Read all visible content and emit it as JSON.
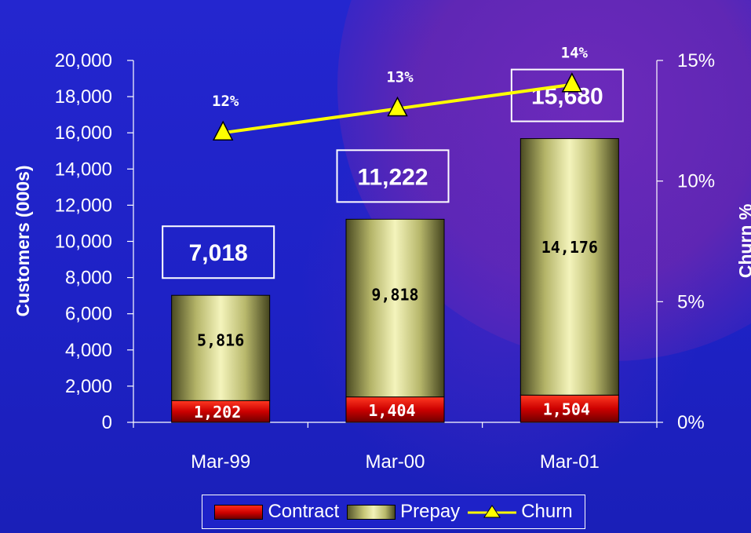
{
  "chart_data": {
    "type": "bar",
    "stacked": true,
    "categories": [
      "Mar-99",
      "Mar-00",
      "Mar-01"
    ],
    "series": [
      {
        "name": "Contract",
        "values": [
          1202,
          1404,
          1504
        ],
        "labels": [
          "1,202",
          "1,404",
          "1,504"
        ],
        "color": "#cc0000"
      },
      {
        "name": "Prepay",
        "values": [
          5816,
          9818,
          14176
        ],
        "labels": [
          "5,816",
          "9,818",
          "14,176"
        ],
        "color": "#e6e6a0"
      }
    ],
    "totals": [
      "7,018",
      "11,222",
      "15,680"
    ],
    "totals_values": [
      7018,
      11222,
      15680
    ],
    "churn": {
      "name": "Churn",
      "values": [
        12,
        13,
        14
      ],
      "labels": [
        "12%",
        "13%",
        "14%"
      ],
      "color": "#ffff00",
      "axis": "secondary"
    },
    "ylabel": "Customers (000s)",
    "y2label": "Churn %",
    "ylim": [
      0,
      20000
    ],
    "yticks": [
      "0",
      "2,000",
      "4,000",
      "6,000",
      "8,000",
      "10,000",
      "12,000",
      "14,000",
      "16,000",
      "18,000",
      "20,000"
    ],
    "y2lim": [
      0,
      15
    ],
    "y2ticks": [
      "0%",
      "5%",
      "10%",
      "15%"
    ],
    "grid": false,
    "legend_position": "bottom"
  },
  "legend": {
    "contract_label": "Contract",
    "prepay_label": "Prepay",
    "churn_label": "Churn"
  }
}
